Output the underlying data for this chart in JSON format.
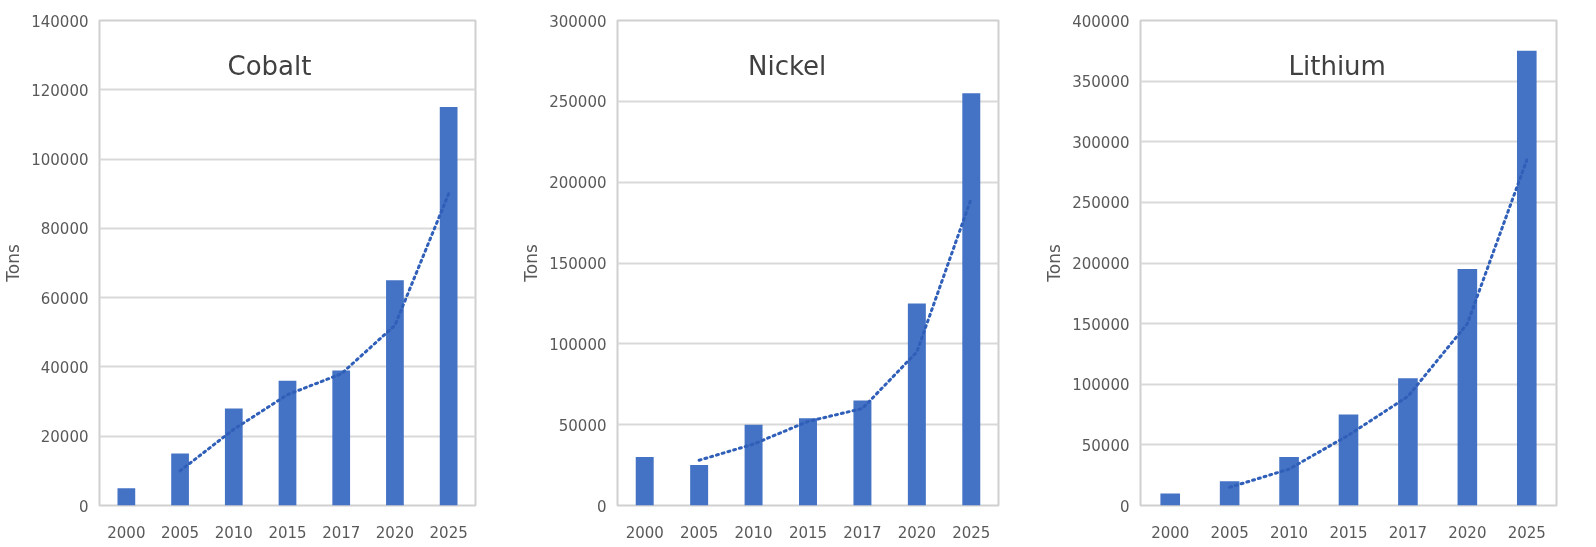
{
  "chart_data": [
    {
      "type": "bar",
      "title": "Cobalt",
      "ylabel": "Tons",
      "categories": [
        "2000",
        "2005",
        "2010",
        "2015",
        "2017",
        "2020",
        "2025"
      ],
      "ylim": [
        0,
        140000
      ],
      "yticks": [
        0,
        20000,
        40000,
        60000,
        80000,
        100000,
        120000,
        140000
      ],
      "grid": "y",
      "series": [
        {
          "color": "#4472c4",
          "values": [
            5000,
            15000,
            28000,
            36000,
            39000,
            65000,
            115000
          ]
        },
        {
          "type": "line",
          "line_style": "dotted",
          "color": "#2f5fb8",
          "values": [
            null,
            10000,
            22000,
            32000,
            38000,
            52000,
            90000
          ]
        }
      ]
    },
    {
      "type": "bar",
      "title": "Nickel",
      "ylabel": "Tons",
      "categories": [
        "2000",
        "2005",
        "2010",
        "2015",
        "2017",
        "2020",
        "2025"
      ],
      "ylim": [
        0,
        300000
      ],
      "yticks": [
        0,
        50000,
        100000,
        150000,
        200000,
        250000,
        300000
      ],
      "grid": "y",
      "series": [
        {
          "color": "#4472c4",
          "values": [
            30000,
            25000,
            50000,
            54000,
            65000,
            125000,
            255000
          ]
        },
        {
          "type": "line",
          "line_style": "dotted",
          "color": "#2f5fb8",
          "values": [
            null,
            28000,
            38000,
            52000,
            60000,
            95000,
            190000
          ]
        }
      ]
    },
    {
      "type": "bar",
      "title": "Lithium",
      "ylabel": "Tons",
      "categories": [
        "2000",
        "2005",
        "2010",
        "2015",
        "2017",
        "2020",
        "2025"
      ],
      "ylim": [
        0,
        400000
      ],
      "yticks": [
        0,
        50000,
        100000,
        150000,
        200000,
        250000,
        300000,
        350000,
        400000
      ],
      "grid": "y",
      "series": [
        {
          "color": "#4472c4",
          "values": [
            10000,
            20000,
            40000,
            75000,
            105000,
            195000,
            375000
          ]
        },
        {
          "type": "line",
          "line_style": "dotted",
          "color": "#2f5fb8",
          "values": [
            null,
            15000,
            30000,
            58000,
            90000,
            150000,
            285000
          ]
        }
      ]
    }
  ]
}
